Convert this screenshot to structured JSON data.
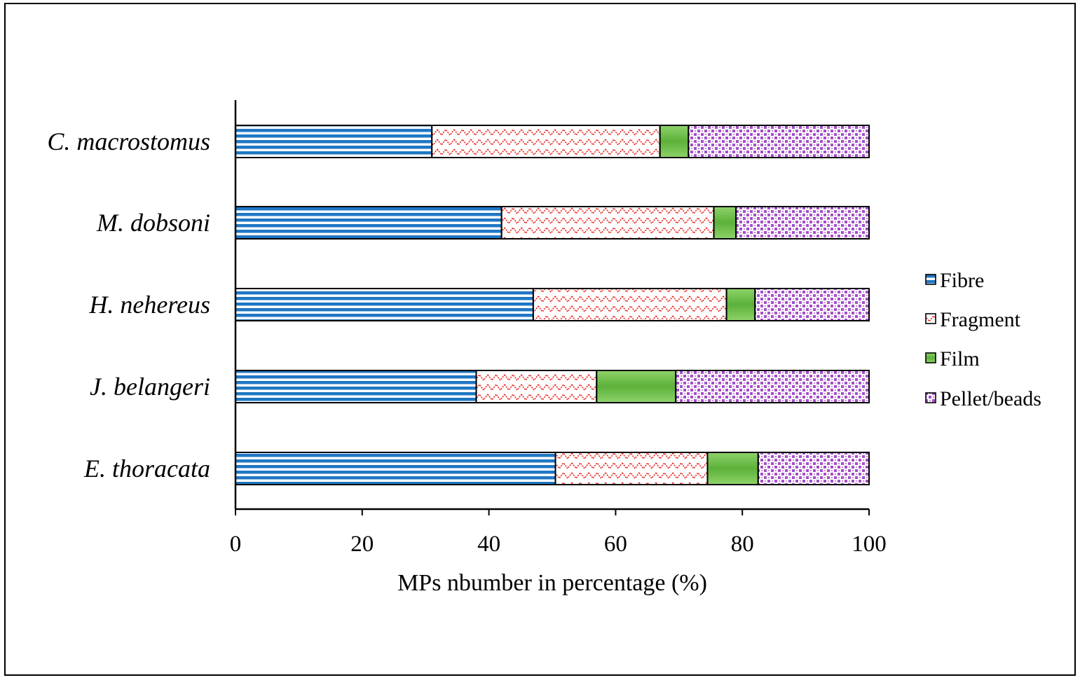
{
  "chart_data": {
    "type": "bar",
    "orientation": "horizontal",
    "stacked": true,
    "title": "",
    "xlabel": "MPs nbumber in percentage (%)",
    "ylabel": "",
    "xlim": [
      0,
      100
    ],
    "xticks": [
      0,
      20,
      40,
      60,
      80,
      100
    ],
    "categories": [
      "C. macrostomus",
      "M. dobsoni",
      "H. nehereus",
      "J. belangeri",
      "E. thoracata"
    ],
    "series": [
      {
        "name": "Fibre",
        "color": "#1f77c4",
        "values": [
          31,
          42,
          47,
          38,
          50.5
        ]
      },
      {
        "name": "Fragment",
        "color": "#e8231c",
        "values": [
          36,
          33.5,
          30.5,
          19,
          24
        ]
      },
      {
        "name": "Film",
        "color": "#66bb44",
        "values": [
          4.5,
          3.5,
          4.5,
          12.5,
          8
        ]
      },
      {
        "name": "Pellet/beads",
        "color": "#a44fc8",
        "values": [
          28.5,
          21,
          18,
          30.5,
          17.5
        ]
      }
    ],
    "legend_position": "right",
    "grid": false
  }
}
